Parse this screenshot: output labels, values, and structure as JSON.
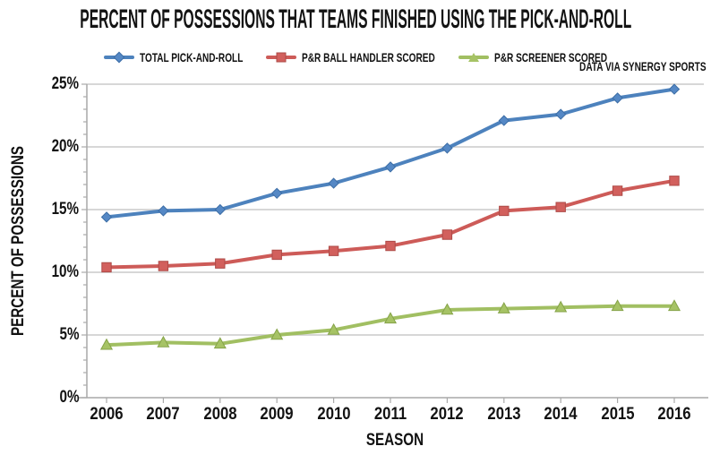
{
  "title": "PERCENT OF POSSESSIONS THAT TEAMS FINISHED USING THE PICK-AND-ROLL",
  "attribution": "DATA VIA SYNERGY SPORTS",
  "colors": {
    "blue_line": "#4d82bd",
    "blue_marker": "#5588c5",
    "blue_marker_edge": "#3d6ea6",
    "red_line": "#cd5b58",
    "red_marker": "#d2605d",
    "red_marker_edge": "#ad4a47",
    "green_line": "#a1bf62",
    "green_marker": "#a6c365",
    "green_marker_edge": "#85a348",
    "gridline": "#cacaca",
    "axis": "#a9a9a9",
    "text": "#131313"
  },
  "chart_data": {
    "type": "line",
    "title": "PERCENT OF POSSESSIONS THAT TEAMS FINISHED USING THE PICK-AND-ROLL",
    "xlabel": "SEASON",
    "ylabel": "PERCENT OF POSSESSIONS",
    "x": [
      2006,
      2007,
      2008,
      2009,
      2010,
      2011,
      2012,
      2013,
      2014,
      2015,
      2016
    ],
    "ylim": [
      0,
      25
    ],
    "ytick_step": 5,
    "ytick_labels": [
      "0%",
      "5%",
      "10%",
      "15%",
      "20%",
      "25%"
    ],
    "grid": true,
    "legend_position": "top",
    "annotation": "DATA VIA SYNERGY SPORTS",
    "series": [
      {
        "name": "TOTAL PICK-AND-ROLL",
        "marker": "diamond",
        "color": "#4d82bd",
        "values": [
          14.4,
          14.9,
          15.0,
          16.3,
          17.1,
          18.4,
          19.9,
          22.1,
          22.6,
          23.9,
          24.6
        ]
      },
      {
        "name": "P&R BALL HANDLER SCORED",
        "marker": "square",
        "color": "#cd5b58",
        "values": [
          10.4,
          10.5,
          10.7,
          11.4,
          11.7,
          12.1,
          13.0,
          14.9,
          15.2,
          16.5,
          17.3
        ]
      },
      {
        "name": "P&R SCREENER SCORED",
        "marker": "triangle",
        "color": "#a1bf62",
        "values": [
          4.2,
          4.4,
          4.3,
          5.0,
          5.4,
          6.3,
          7.0,
          7.1,
          7.2,
          7.3,
          7.3
        ]
      }
    ]
  }
}
